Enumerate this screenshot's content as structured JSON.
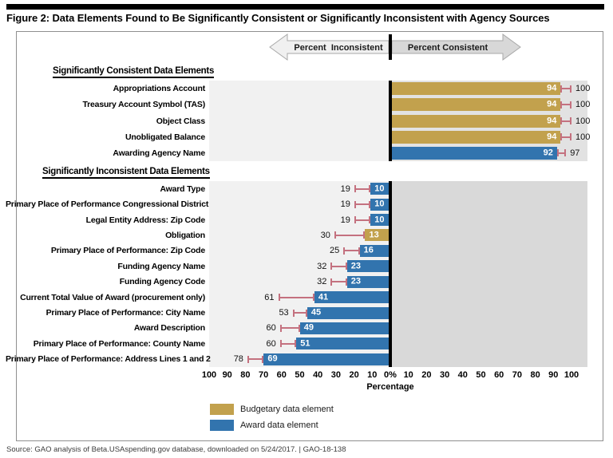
{
  "figure": {
    "title": "Figure 2: Data Elements Found to Be Significantly Consistent or Significantly Inconsistent with Agency Sources",
    "source": "Source: GAO analysis of Beta.USAspending.gov database, downloaded on 5/24/2017. | GAO-18-138"
  },
  "banner": {
    "left_label": "Percent  Inconsistent",
    "right_label": "Percent Consistent"
  },
  "legend": [
    {
      "label": "Budgetary data element",
      "type": "budgetary"
    },
    {
      "label": "Award data element",
      "type": "award"
    }
  ],
  "colors": {
    "budgetary": "#c2a14d",
    "award": "#3274ae",
    "error_bar": "#c4717f",
    "zero_line": "#000000",
    "panel_left": "#f1f1f1",
    "panel_consistent_right": "#e2e2e2",
    "panel_inconsistent_right": "#d9d9d9",
    "arrow_left_fill": "#f0f0f0",
    "arrow_right_fill": "#d8d8d8",
    "arrow_stroke": "#a8a8a8",
    "frame_border": "#8f8f8f"
  },
  "chart_data": {
    "type": "bar",
    "orientation": "horizontal-diverging",
    "title": "Figure 2: Data Elements Found to Be Significantly Consistent or Significantly Inconsistent with Agency Sources",
    "xlabel": "Percentage",
    "units": "percent",
    "axis": {
      "left_ticks": [
        100,
        90,
        80,
        70,
        60,
        50,
        40,
        30,
        20,
        10
      ],
      "zero_label": "0%",
      "right_ticks": [
        10,
        20,
        30,
        40,
        50,
        60,
        70,
        80,
        90,
        100
      ],
      "left_range": [
        0,
        100
      ],
      "right_range": [
        0,
        100
      ]
    },
    "legend": [
      "Budgetary data element",
      "Award data element"
    ],
    "note": "Bar shows point estimate; whisker extends to upper bound value printed beyond the cap.",
    "groups": [
      {
        "group": "Significantly Consistent Data Elements",
        "direction": "percent_consistent",
        "rows": [
          {
            "category": "Appropriations Account",
            "element_type": "budgetary",
            "percent": 94,
            "error_bound": 100
          },
          {
            "category": "Treasury Account Symbol (TAS)",
            "element_type": "budgetary",
            "percent": 94,
            "error_bound": 100
          },
          {
            "category": "Object Class",
            "element_type": "budgetary",
            "percent": 94,
            "error_bound": 100
          },
          {
            "category": "Unobligated Balance",
            "element_type": "budgetary",
            "percent": 94,
            "error_bound": 100
          },
          {
            "category": "Awarding Agency Name",
            "element_type": "award",
            "percent": 92,
            "error_bound": 97
          }
        ]
      },
      {
        "group": "Significantly Inconsistent Data Elements",
        "direction": "percent_inconsistent",
        "rows": [
          {
            "category": "Award Type",
            "element_type": "award",
            "percent": 10,
            "error_bound": 19
          },
          {
            "category": "Primary Place of Performance Congressional District",
            "element_type": "award",
            "percent": 10,
            "error_bound": 19
          },
          {
            "category": "Legal Entity Address: Zip Code",
            "element_type": "award",
            "percent": 10,
            "error_bound": 19
          },
          {
            "category": "Obligation",
            "element_type": "budgetary",
            "percent": 13,
            "error_bound": 30
          },
          {
            "category": "Primary Place of Performance: Zip Code",
            "element_type": "award",
            "percent": 16,
            "error_bound": 25
          },
          {
            "category": "Funding Agency Name",
            "element_type": "award",
            "percent": 23,
            "error_bound": 32
          },
          {
            "category": "Funding Agency Code",
            "element_type": "award",
            "percent": 23,
            "error_bound": 32
          },
          {
            "category": "Current Total Value of Award (procurement only)",
            "element_type": "award",
            "percent": 41,
            "error_bound": 61
          },
          {
            "category": "Primary Place of Performance: City Name",
            "element_type": "award",
            "percent": 45,
            "error_bound": 53
          },
          {
            "category": "Award Description",
            "element_type": "award",
            "percent": 49,
            "error_bound": 60
          },
          {
            "category": "Primary Place of Performance: County Name",
            "element_type": "award",
            "percent": 51,
            "error_bound": 60
          },
          {
            "category": "Primary Place of Performance: Address Lines 1 and 2",
            "element_type": "award",
            "percent": 69,
            "error_bound": 78
          }
        ]
      }
    ]
  }
}
